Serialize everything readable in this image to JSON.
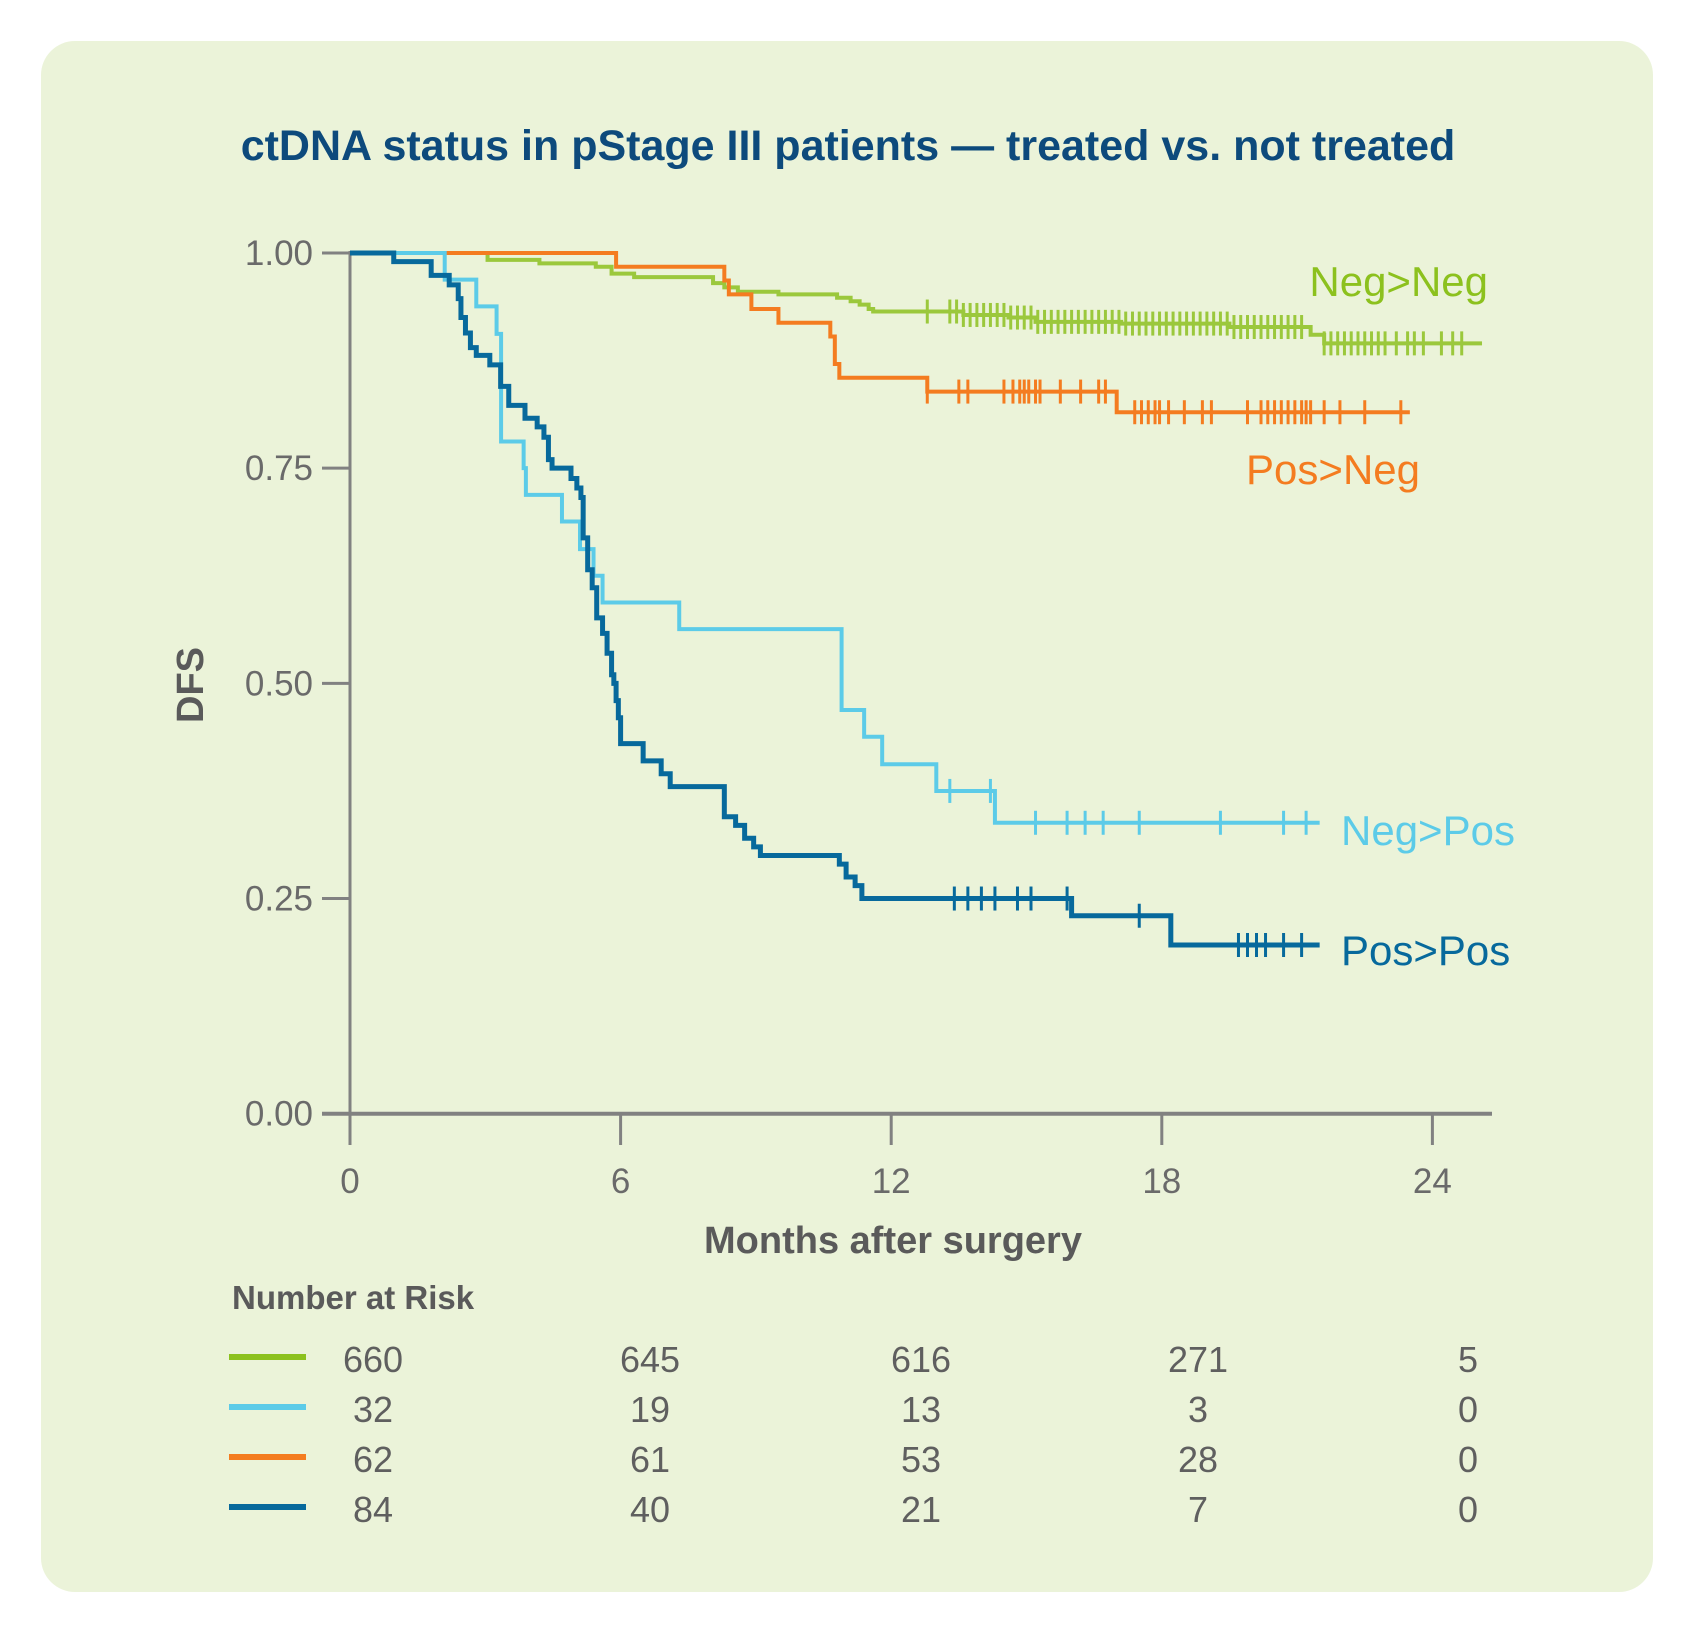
{
  "chart_data": {
    "type": "line",
    "subtype": "kaplan-meier step",
    "title": "ctDNA status in pStage III patients — treated vs. not treated",
    "xlabel": "Months after surgery",
    "ylabel": "DFS",
    "xlim": [
      0,
      25
    ],
    "ylim": [
      0,
      1
    ],
    "xticks": [
      "0",
      "6",
      "12",
      "18",
      "24"
    ],
    "yticks": [
      "0.00",
      "0.25",
      "0.50",
      "0.75",
      "1.00"
    ],
    "grid": false,
    "legend": "inline labels at curve ends",
    "series": [
      {
        "name": "Neg>Neg",
        "color": "#9bc83c",
        "label_color": "#8cc11e",
        "steps": [
          [
            0,
            1
          ],
          [
            3.05,
            0.992
          ],
          [
            4.2,
            0.988
          ],
          [
            5.45,
            0.984
          ],
          [
            5.8,
            0.976
          ],
          [
            6.3,
            0.972
          ],
          [
            8.05,
            0.965
          ],
          [
            8.3,
            0.96
          ],
          [
            8.6,
            0.955
          ],
          [
            9.5,
            0.952
          ],
          [
            10.8,
            0.948
          ],
          [
            11.1,
            0.944
          ],
          [
            11.3,
            0.94
          ],
          [
            11.5,
            0.935
          ],
          [
            11.6,
            0.932
          ],
          [
            13.6,
            0.928
          ],
          [
            14.6,
            0.925
          ],
          [
            15.2,
            0.92
          ],
          [
            17.1,
            0.918
          ],
          [
            19.5,
            0.914
          ],
          [
            21.3,
            0.905
          ],
          [
            21.6,
            0.895
          ]
        ],
        "end": 25.1,
        "censored": [
          12.8,
          13.3,
          13.45,
          13.6,
          13.75,
          13.9,
          14.05,
          14.2,
          14.35,
          14.5,
          14.65,
          14.8,
          14.95,
          15.1,
          15.25,
          15.4,
          15.55,
          15.7,
          15.85,
          16.0,
          16.15,
          16.3,
          16.45,
          16.6,
          16.75,
          16.9,
          17.05,
          17.2,
          17.35,
          17.5,
          17.65,
          17.8,
          17.95,
          18.1,
          18.25,
          18.4,
          18.55,
          18.7,
          18.85,
          19.0,
          19.15,
          19.3,
          19.45,
          19.6,
          19.75,
          19.9,
          20.05,
          20.2,
          20.35,
          20.5,
          20.65,
          20.8,
          20.95,
          21.1,
          21.6,
          21.75,
          21.9,
          22.05,
          22.2,
          22.35,
          22.5,
          22.65,
          22.8,
          22.95,
          23.2,
          23.45,
          23.6,
          23.8,
          24.2,
          24.45,
          24.65
        ]
      },
      {
        "name": "Pos>Neg",
        "color": "#f47c20",
        "label_color": "#f47c20",
        "steps": [
          [
            0,
            1
          ],
          [
            5.9,
            0.984
          ],
          [
            8.3,
            0.968
          ],
          [
            8.4,
            0.952
          ],
          [
            8.9,
            0.935
          ],
          [
            9.5,
            0.919
          ],
          [
            10.65,
            0.903
          ],
          [
            10.75,
            0.871
          ],
          [
            10.85,
            0.855
          ],
          [
            12.8,
            0.839
          ],
          [
            17.0,
            0.815
          ]
        ],
        "end": 23.5,
        "censored": [
          12.8,
          13.5,
          13.7,
          14.5,
          14.7,
          14.85,
          14.95,
          15.05,
          15.2,
          15.3,
          15.75,
          16.2,
          16.6,
          16.75,
          17.4,
          17.55,
          17.7,
          17.85,
          17.95,
          18.15,
          18.5,
          18.9,
          19.1,
          19.9,
          20.2,
          20.35,
          20.5,
          20.65,
          20.8,
          20.95,
          21.1,
          21.2,
          21.3,
          21.6,
          21.95,
          22.5,
          23.3
        ]
      },
      {
        "name": "Neg>Pos",
        "color": "#5ccbe8",
        "label_color": "#5ccbe8",
        "steps": [
          [
            0,
            1
          ],
          [
            2.1,
            0.969
          ],
          [
            2.8,
            0.938
          ],
          [
            3.25,
            0.906
          ],
          [
            3.35,
            0.781
          ],
          [
            3.85,
            0.75
          ],
          [
            3.9,
            0.719
          ],
          [
            4.7,
            0.688
          ],
          [
            5.1,
            0.656
          ],
          [
            5.4,
            0.625
          ],
          [
            5.6,
            0.594
          ],
          [
            7.3,
            0.563
          ],
          [
            10.9,
            0.469
          ],
          [
            11.4,
            0.438
          ],
          [
            11.8,
            0.406
          ],
          [
            13.0,
            0.375
          ],
          [
            14.3,
            0.338
          ]
        ],
        "end": 21.5,
        "censored": [
          13.3,
          14.2,
          15.2,
          15.9,
          16.3,
          16.7,
          17.5,
          19.3,
          20.7,
          21.2
        ]
      },
      {
        "name": "Pos>Pos",
        "color": "#07699c",
        "label_color": "#07699c",
        "steps": [
          [
            0,
            1
          ],
          [
            0.97,
            0.99
          ],
          [
            1.8,
            0.974
          ],
          [
            2.2,
            0.963
          ],
          [
            2.4,
            0.947
          ],
          [
            2.46,
            0.925
          ],
          [
            2.56,
            0.907
          ],
          [
            2.67,
            0.89
          ],
          [
            2.8,
            0.881
          ],
          [
            3.1,
            0.87
          ],
          [
            3.34,
            0.845
          ],
          [
            3.52,
            0.823
          ],
          [
            3.88,
            0.808
          ],
          [
            4.15,
            0.798
          ],
          [
            4.3,
            0.786
          ],
          [
            4.4,
            0.76
          ],
          [
            4.48,
            0.75
          ],
          [
            4.9,
            0.738
          ],
          [
            5.03,
            0.727
          ],
          [
            5.12,
            0.716
          ],
          [
            5.17,
            0.669
          ],
          [
            5.27,
            0.632
          ],
          [
            5.37,
            0.611
          ],
          [
            5.47,
            0.576
          ],
          [
            5.6,
            0.558
          ],
          [
            5.7,
            0.535
          ],
          [
            5.8,
            0.51
          ],
          [
            5.85,
            0.5
          ],
          [
            5.9,
            0.48
          ],
          [
            5.95,
            0.46
          ],
          [
            6.0,
            0.43
          ],
          [
            6.5,
            0.41
          ],
          [
            6.9,
            0.395
          ],
          [
            7.1,
            0.38
          ],
          [
            8.3,
            0.345
          ],
          [
            8.55,
            0.335
          ],
          [
            8.75,
            0.32
          ],
          [
            8.95,
            0.31
          ],
          [
            9.1,
            0.3
          ],
          [
            10.85,
            0.29
          ],
          [
            11.0,
            0.275
          ],
          [
            11.2,
            0.265
          ],
          [
            11.35,
            0.25
          ],
          [
            16.0,
            0.23
          ],
          [
            18.2,
            0.196
          ]
        ],
        "end": 21.5,
        "censored": [
          13.4,
          13.7,
          14.0,
          14.3,
          14.8,
          15.1,
          15.9,
          17.5,
          19.7,
          19.9,
          20.1,
          20.3,
          20.7,
          21.1
        ]
      }
    ],
    "number_at_risk": {
      "title": "Number at Risk",
      "rows": [
        {
          "series": "Neg>Neg",
          "color": "#8cc11e",
          "values": [
            "660",
            "645",
            "616",
            "271",
            "5"
          ]
        },
        {
          "series": "Neg>Pos",
          "color": "#5ccbe8",
          "values": [
            "32",
            "19",
            "13",
            "3",
            "0"
          ]
        },
        {
          "series": "Pos>Neg",
          "color": "#f47c20",
          "values": [
            "62",
            "61",
            "53",
            "28",
            "0"
          ]
        },
        {
          "series": "Pos>Pos",
          "color": "#07699c",
          "values": [
            "84",
            "40",
            "21",
            "7",
            "0"
          ]
        }
      ]
    }
  },
  "colors": {
    "card_background": "#ebf3d9",
    "title": "#0d4a7c",
    "axis": "#818181"
  }
}
